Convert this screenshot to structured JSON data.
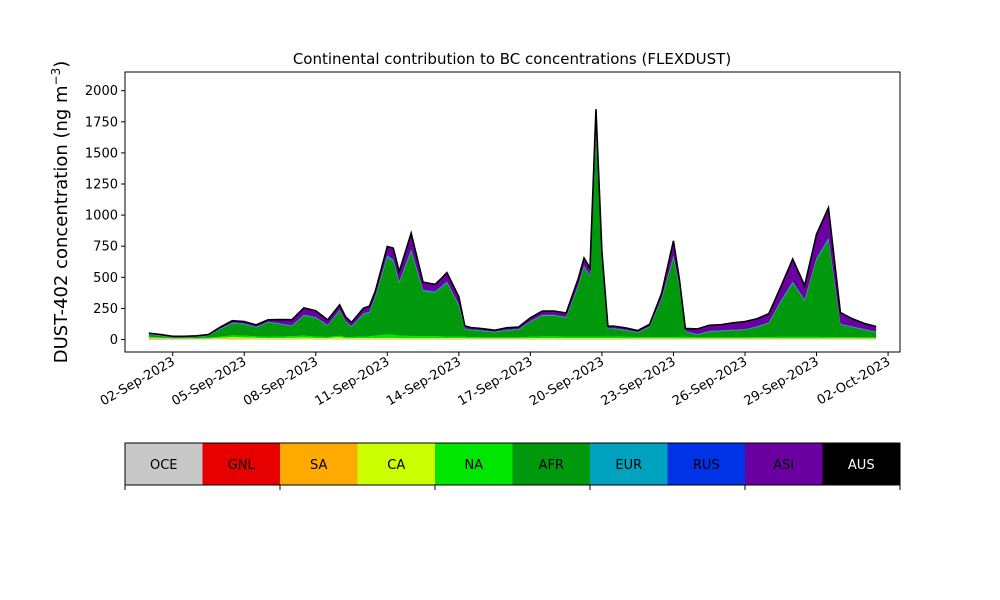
{
  "chart_data": {
    "type": "area",
    "title": "Continental contribution to BC concentrations (FLEXDUST)",
    "ylabel": "DUST-402 concentration (ng m",
    "ylabel_sup": "−3",
    "ylabel_close": ")",
    "xlim": [
      "2023-08-31T00:00",
      "2023-10-02T12:00"
    ],
    "ylim": [
      -100,
      2150
    ],
    "yticks": [
      0,
      250,
      500,
      750,
      1000,
      1250,
      1500,
      1750,
      2000
    ],
    "xticks": [
      {
        "date": "2023-09-02",
        "label": "02-Sep-2023"
      },
      {
        "date": "2023-09-05",
        "label": "05-Sep-2023"
      },
      {
        "date": "2023-09-08",
        "label": "08-Sep-2023"
      },
      {
        "date": "2023-09-11",
        "label": "11-Sep-2023"
      },
      {
        "date": "2023-09-14",
        "label": "14-Sep-2023"
      },
      {
        "date": "2023-09-17",
        "label": "17-Sep-2023"
      },
      {
        "date": "2023-09-20",
        "label": "20-Sep-2023"
      },
      {
        "date": "2023-09-23",
        "label": "23-Sep-2023"
      },
      {
        "date": "2023-09-26",
        "label": "26-Sep-2023"
      },
      {
        "date": "2023-09-29",
        "label": "29-Sep-2023"
      },
      {
        "date": "2023-10-02",
        "label": "02-Oct-2023"
      }
    ],
    "grid": false,
    "series_order_bottom_to_top": [
      "OCE",
      "GNL",
      "SA",
      "CA",
      "NA",
      "AFR",
      "EUR",
      "RUS",
      "ASI",
      "AUS"
    ],
    "legend": [
      {
        "name": "OCE",
        "color": "#c8c8c8",
        "text_color": "#000000"
      },
      {
        "name": "GNL",
        "color": "#e60000",
        "text_color": "#000000"
      },
      {
        "name": "SA",
        "color": "#ffaa00",
        "text_color": "#000000"
      },
      {
        "name": "CA",
        "color": "#ccff00",
        "text_color": "#000000"
      },
      {
        "name": "NA",
        "color": "#00e600",
        "text_color": "#000000"
      },
      {
        "name": "AFR",
        "color": "#00990d",
        "text_color": "#000000"
      },
      {
        "name": "EUR",
        "color": "#00a3bf",
        "text_color": "#000000"
      },
      {
        "name": "RUS",
        "color": "#0033e6",
        "text_color": "#000000"
      },
      {
        "name": "ASI",
        "color": "#6a009f",
        "text_color": "#000000"
      },
      {
        "name": "AUS",
        "color": "#000000",
        "text_color": "#ffffff"
      }
    ],
    "x": [
      "2023-09-01T00:00",
      "2023-09-01T12:00",
      "2023-09-02T00:00",
      "2023-09-02T12:00",
      "2023-09-03T00:00",
      "2023-09-03T12:00",
      "2023-09-04T00:00",
      "2023-09-04T12:00",
      "2023-09-05T00:00",
      "2023-09-05T12:00",
      "2023-09-06T00:00",
      "2023-09-06T12:00",
      "2023-09-07T00:00",
      "2023-09-07T12:00",
      "2023-09-08T00:00",
      "2023-09-08T12:00",
      "2023-09-09T00:00",
      "2023-09-09T06:00",
      "2023-09-09T12:00",
      "2023-09-10T00:00",
      "2023-09-10T06:00",
      "2023-09-10T12:00",
      "2023-09-11T00:00",
      "2023-09-11T06:00",
      "2023-09-11T12:00",
      "2023-09-12T00:00",
      "2023-09-12T12:00",
      "2023-09-13T00:00",
      "2023-09-13T06:00",
      "2023-09-13T12:00",
      "2023-09-14T00:00",
      "2023-09-14T06:00",
      "2023-09-14T12:00",
      "2023-09-15T00:00",
      "2023-09-15T12:00",
      "2023-09-16T00:00",
      "2023-09-16T12:00",
      "2023-09-17T00:00",
      "2023-09-17T12:00",
      "2023-09-18T00:00",
      "2023-09-18T12:00",
      "2023-09-19T00:00",
      "2023-09-19T06:00",
      "2023-09-19T12:00",
      "2023-09-19T18:00",
      "2023-09-20T00:00",
      "2023-09-20T06:00",
      "2023-09-20T12:00",
      "2023-09-21T00:00",
      "2023-09-21T12:00",
      "2023-09-22T00:00",
      "2023-09-22T12:00",
      "2023-09-23T00:00",
      "2023-09-23T06:00",
      "2023-09-23T12:00",
      "2023-09-24T00:00",
      "2023-09-24T12:00",
      "2023-09-25T00:00",
      "2023-09-25T12:00",
      "2023-09-26T00:00",
      "2023-09-26T12:00",
      "2023-09-27T00:00",
      "2023-09-27T12:00",
      "2023-09-28T00:00",
      "2023-09-28T12:00",
      "2023-09-29T00:00",
      "2023-09-29T12:00",
      "2023-09-30T00:00",
      "2023-09-30T12:00",
      "2023-10-01T00:00",
      "2023-10-01T12:00"
    ],
    "series": [
      {
        "name": "OCE",
        "values": [
          2,
          2,
          2,
          2,
          2,
          2,
          2,
          2,
          2,
          2,
          2,
          2,
          2,
          2,
          2,
          2,
          2,
          2,
          2,
          2,
          2,
          2,
          2,
          2,
          2,
          2,
          2,
          2,
          2,
          2,
          2,
          2,
          2,
          2,
          2,
          2,
          2,
          2,
          2,
          2,
          2,
          2,
          2,
          2,
          2,
          2,
          2,
          2,
          2,
          2,
          2,
          2,
          2,
          2,
          2,
          2,
          2,
          2,
          2,
          2,
          2,
          2,
          2,
          2,
          2,
          2,
          2,
          2,
          2,
          2,
          2
        ]
      },
      {
        "name": "GNL",
        "values": [
          3,
          2,
          1,
          1,
          1,
          1,
          1,
          1,
          1,
          1,
          1,
          1,
          1,
          1,
          1,
          1,
          1,
          1,
          1,
          1,
          1,
          1,
          1,
          1,
          1,
          1,
          1,
          1,
          1,
          1,
          1,
          1,
          1,
          1,
          1,
          1,
          1,
          1,
          1,
          1,
          1,
          1,
          1,
          1,
          1,
          1,
          1,
          1,
          1,
          1,
          1,
          1,
          1,
          1,
          1,
          1,
          1,
          1,
          1,
          1,
          1,
          1,
          1,
          1,
          1,
          1,
          1,
          1,
          1,
          1,
          1
        ]
      },
      {
        "name": "SA",
        "values": [
          5,
          4,
          2,
          2,
          2,
          2,
          3,
          5,
          4,
          3,
          3,
          3,
          3,
          3,
          3,
          3,
          3,
          3,
          3,
          3,
          3,
          3,
          3,
          3,
          3,
          3,
          3,
          3,
          3,
          3,
          3,
          3,
          3,
          3,
          3,
          3,
          3,
          3,
          3,
          3,
          3,
          3,
          3,
          3,
          3,
          3,
          3,
          3,
          3,
          3,
          3,
          3,
          3,
          3,
          3,
          3,
          3,
          3,
          3,
          3,
          3,
          3,
          3,
          3,
          3,
          3,
          3,
          3,
          3,
          3,
          3
        ]
      },
      {
        "name": "CA",
        "values": [
          5,
          4,
          3,
          3,
          3,
          4,
          8,
          12,
          10,
          8,
          6,
          6,
          8,
          10,
          6,
          5,
          15,
          5,
          5,
          6,
          6,
          6,
          8,
          8,
          6,
          5,
          5,
          5,
          5,
          5,
          5,
          5,
          4,
          4,
          4,
          4,
          4,
          5,
          5,
          5,
          5,
          5,
          5,
          5,
          5,
          5,
          5,
          5,
          4,
          4,
          4,
          4,
          4,
          4,
          4,
          4,
          4,
          4,
          4,
          4,
          4,
          4,
          4,
          4,
          4,
          4,
          4,
          4,
          4,
          4,
          4
        ]
      },
      {
        "name": "NA",
        "values": [
          8,
          6,
          4,
          4,
          5,
          6,
          10,
          14,
          15,
          12,
          10,
          12,
          14,
          16,
          12,
          10,
          10,
          10,
          10,
          12,
          14,
          20,
          28,
          25,
          20,
          18,
          18,
          16,
          15,
          14,
          12,
          12,
          10,
          8,
          8,
          8,
          8,
          12,
          15,
          15,
          14,
          14,
          14,
          14,
          14,
          14,
          14,
          14,
          12,
          10,
          10,
          10,
          10,
          12,
          12,
          8,
          8,
          8,
          8,
          8,
          10,
          10,
          12,
          12,
          12,
          12,
          10,
          10,
          10,
          8,
          8
        ]
      },
      {
        "name": "AFR",
        "values": [
          18,
          12,
          5,
          5,
          8,
          15,
          60,
          95,
          90,
          70,
          115,
          100,
          80,
          160,
          150,
          90,
          200,
          120,
          80,
          180,
          190,
          310,
          620,
          590,
          420,
          680,
          360,
          350,
          390,
          430,
          250,
          60,
          55,
          50,
          40,
          55,
          60,
          120,
          165,
          165,
          150,
          400,
          560,
          480,
          1620,
          600,
          60,
          60,
          50,
          35,
          80,
          300,
          640,
          400,
          40,
          20,
          45,
          50,
          55,
          60,
          80,
          110,
          280,
          430,
          290,
          620,
          780,
          100,
          80,
          60,
          40
        ]
      },
      {
        "name": "EUR",
        "values": [
          2,
          2,
          2,
          2,
          2,
          2,
          3,
          4,
          4,
          3,
          3,
          3,
          3,
          4,
          4,
          3,
          4,
          3,
          3,
          4,
          4,
          5,
          10,
          10,
          8,
          10,
          6,
          6,
          6,
          7,
          5,
          3,
          3,
          3,
          3,
          3,
          3,
          3,
          4,
          4,
          4,
          5,
          5,
          5,
          10,
          6,
          4,
          4,
          3,
          3,
          3,
          5,
          8,
          6,
          3,
          3,
          3,
          3,
          3,
          3,
          3,
          4,
          6,
          8,
          6,
          8,
          10,
          3,
          3,
          3,
          3
        ]
      },
      {
        "name": "RUS",
        "values": [
          2,
          2,
          2,
          2,
          2,
          2,
          2,
          3,
          3,
          3,
          3,
          3,
          3,
          3,
          3,
          3,
          3,
          3,
          3,
          3,
          3,
          3,
          5,
          5,
          5,
          5,
          5,
          5,
          5,
          5,
          5,
          3,
          3,
          3,
          3,
          3,
          3,
          3,
          3,
          3,
          3,
          4,
          4,
          4,
          5,
          4,
          3,
          3,
          3,
          3,
          3,
          4,
          5,
          4,
          3,
          3,
          3,
          3,
          3,
          3,
          3,
          3,
          5,
          6,
          5,
          6,
          8,
          4,
          3,
          3,
          3
        ]
      },
      {
        "name": "ASI",
        "values": [
          5,
          5,
          4,
          4,
          4,
          5,
          10,
          15,
          15,
          15,
          15,
          30,
          45,
          55,
          50,
          40,
          40,
          35,
          30,
          40,
          45,
          40,
          70,
          90,
          80,
          130,
          60,
          55,
          60,
          70,
          60,
          20,
          15,
          12,
          10,
          15,
          15,
          25,
          30,
          30,
          30,
          50,
          60,
          60,
          190,
          70,
          15,
          15,
          15,
          10,
          15,
          40,
          120,
          50,
          20,
          40,
          45,
          45,
          55,
          60,
          60,
          70,
          110,
          180,
          110,
          190,
          240,
          90,
          60,
          45,
          40
        ]
      },
      {
        "name": "AUS",
        "values": [
          1,
          1,
          1,
          1,
          1,
          1,
          1,
          1,
          1,
          1,
          1,
          1,
          1,
          1,
          1,
          1,
          1,
          1,
          1,
          1,
          1,
          1,
          1,
          1,
          1,
          1,
          1,
          1,
          1,
          1,
          1,
          1,
          1,
          1,
          1,
          1,
          1,
          1,
          1,
          1,
          1,
          1,
          1,
          1,
          1,
          1,
          1,
          1,
          1,
          1,
          1,
          1,
          1,
          1,
          1,
          1,
          1,
          1,
          1,
          1,
          1,
          1,
          1,
          1,
          1,
          1,
          1,
          1,
          1,
          1,
          1
        ]
      }
    ]
  }
}
